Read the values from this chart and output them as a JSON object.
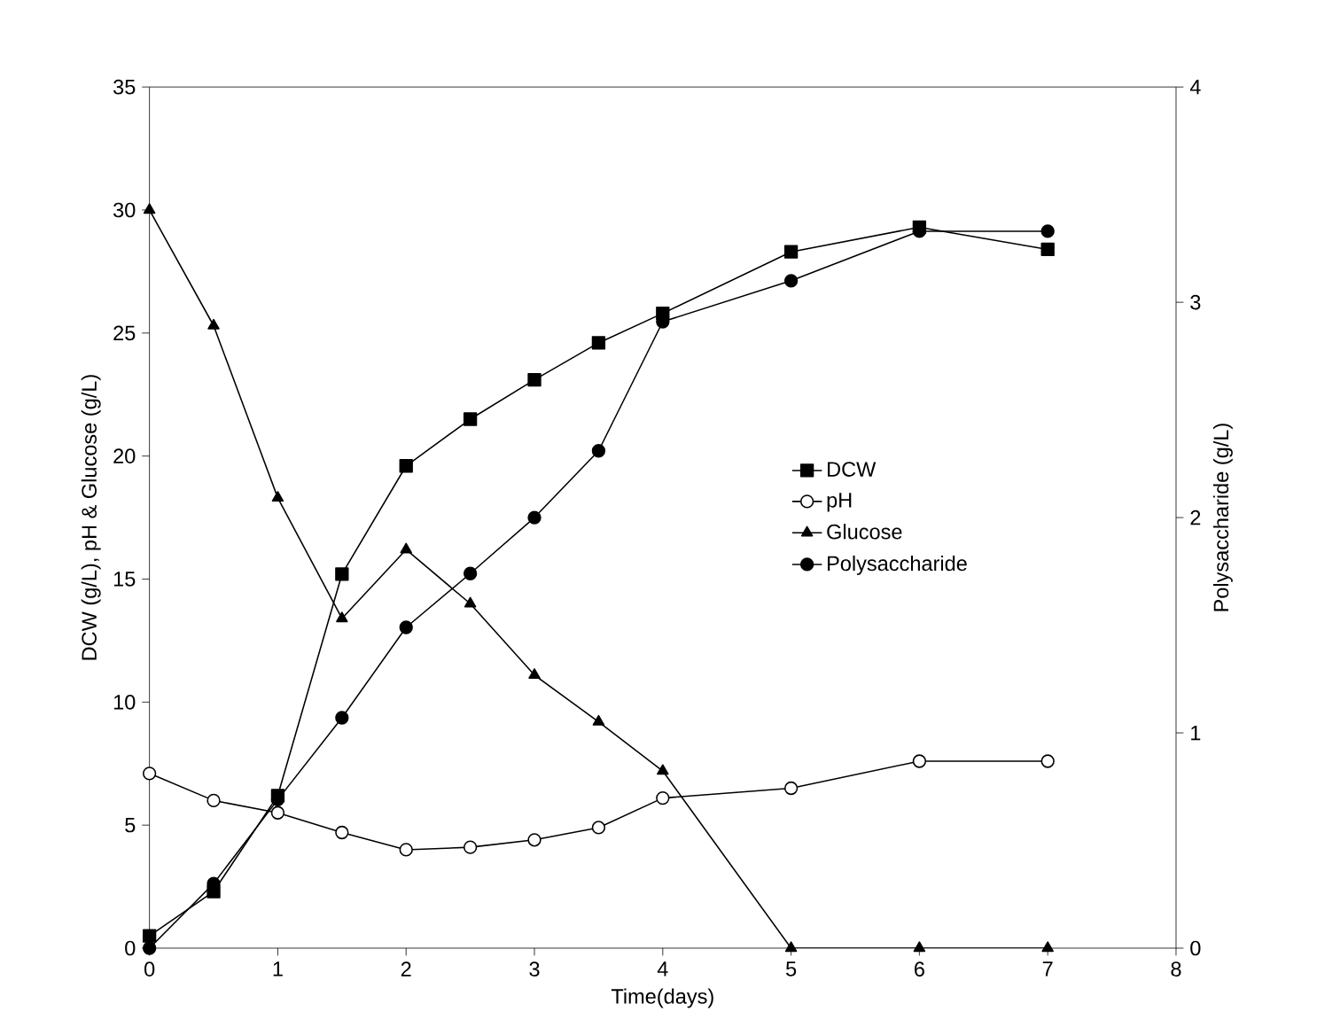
{
  "chart_data": {
    "type": "line",
    "xlabel": "Time(days)",
    "ylabel": "DCW (g/L), pH & Glucose (g/L)",
    "y2label": "Polysaccharide (g/L)",
    "x": [
      0,
      0.5,
      1,
      1.5,
      2,
      2.5,
      3,
      3.5,
      4,
      5,
      6,
      7
    ],
    "series": [
      {
        "name": "DCW",
        "color": "#000000",
        "marker": "square",
        "values": [
          0.5,
          2.3,
          6.2,
          15.2,
          19.6,
          21.5,
          23.1,
          24.6,
          25.8,
          28.3,
          29.3,
          28.4
        ]
      },
      {
        "name": "pH",
        "color": "#000000",
        "marker": "circle",
        "colors": [
          "#ffffff",
          "#ffffff",
          "#ffffff",
          "#ffffff",
          "#ffffff",
          "#ffffff",
          "#ffffff",
          "#ffffff",
          "#ffffff",
          "#ffffff",
          "#ffffff",
          "#ffffff"
        ],
        "values": [
          7.1,
          6.0,
          5.5,
          4.7,
          4.0,
          4.1,
          4.4,
          4.9,
          6.1,
          6.5,
          7.6,
          7.6
        ]
      },
      {
        "name": "Glucose",
        "color": "#000000",
        "marker": "triangle",
        "values": [
          30,
          25.3,
          18.3,
          13.4,
          16.2,
          14.0,
          11.1,
          9.2,
          7.2,
          0,
          0,
          0
        ]
      },
      {
        "name": "Polysaccharide",
        "color": "#000000",
        "marker": "circle",
        "axis": "y2",
        "values": [
          0,
          0.3,
          0.69,
          1.07,
          1.49,
          1.74,
          2.0,
          2.31,
          2.91,
          3.1,
          3.33,
          3.33
        ]
      }
    ],
    "xlim": [
      0,
      8
    ],
    "xticks": [
      0,
      1,
      2,
      3,
      4,
      5,
      6,
      7,
      8
    ],
    "ylim": [
      0,
      35
    ],
    "yticks": [
      0,
      5,
      10,
      15,
      20,
      25,
      30,
      35
    ],
    "y2lim": [
      0,
      4
    ],
    "y2ticks": [
      0,
      1,
      2,
      3,
      4
    ],
    "grid": false,
    "legend": "right",
    "line_style": "solid"
  }
}
